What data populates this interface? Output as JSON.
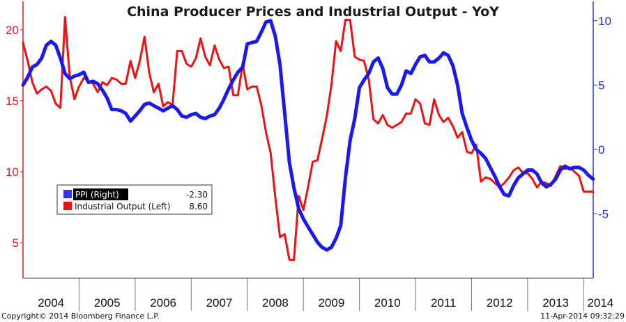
{
  "chart_data": {
    "type": "line",
    "title": "China Producer Prices and Industrial Output - YoY",
    "x": [
      2004.0,
      2004.083,
      2004.167,
      2004.25,
      2004.333,
      2004.417,
      2004.5,
      2004.583,
      2004.667,
      2004.75,
      2004.833,
      2004.917,
      2005.0,
      2005.083,
      2005.167,
      2005.25,
      2005.333,
      2005.417,
      2005.5,
      2005.583,
      2005.667,
      2005.75,
      2005.833,
      2005.917,
      2006.0,
      2006.083,
      2006.167,
      2006.25,
      2006.333,
      2006.417,
      2006.5,
      2006.583,
      2006.667,
      2006.75,
      2006.833,
      2006.917,
      2007.0,
      2007.083,
      2007.167,
      2007.25,
      2007.333,
      2007.417,
      2007.5,
      2007.583,
      2007.667,
      2007.75,
      2007.833,
      2007.917,
      2008.0,
      2008.083,
      2008.167,
      2008.25,
      2008.333,
      2008.417,
      2008.5,
      2008.583,
      2008.667,
      2008.75,
      2008.833,
      2008.917,
      2009.0,
      2009.083,
      2009.167,
      2009.25,
      2009.333,
      2009.417,
      2009.5,
      2009.583,
      2009.667,
      2009.75,
      2009.833,
      2009.917,
      2010.0,
      2010.083,
      2010.167,
      2010.25,
      2010.333,
      2010.417,
      2010.5,
      2010.583,
      2010.667,
      2010.75,
      2010.833,
      2010.917,
      2011.0,
      2011.083,
      2011.167,
      2011.25,
      2011.333,
      2011.417,
      2011.5,
      2011.583,
      2011.667,
      2011.75,
      2011.833,
      2011.917,
      2012.0,
      2012.083,
      2012.167,
      2012.25,
      2012.333,
      2012.417,
      2012.5,
      2012.583,
      2012.667,
      2012.75,
      2012.833,
      2012.917,
      2013.0,
      2013.083,
      2013.167,
      2013.25,
      2013.333,
      2013.417,
      2013.5,
      2013.583,
      2013.667,
      2013.75,
      2013.833,
      2013.917,
      2014.0,
      2014.083,
      2014.167
    ],
    "series": [
      {
        "name": "Industrial Output (Left)",
        "axis": "left",
        "color": "#ee1111",
        "last_value": "8.60",
        "values": [
          19.1,
          17.8,
          16.3,
          15.5,
          15.8,
          16.0,
          15.7,
          14.8,
          14.5,
          20.9,
          16.7,
          15.1,
          16.0,
          16.6,
          16.4,
          16.2,
          15.6,
          16.3,
          16.1,
          16.6,
          16.5,
          16.2,
          16.2,
          17.8,
          16.6,
          17.8,
          19.5,
          17.0,
          15.6,
          16.2,
          14.6,
          14.9,
          14.7,
          18.5,
          18.5,
          17.6,
          17.4,
          18.0,
          19.4,
          18.1,
          17.5,
          18.9,
          17.9,
          17.3,
          17.4,
          15.4,
          15.4,
          17.6,
          15.8,
          16.0,
          16.0,
          14.7,
          12.8,
          11.3,
          8.2,
          5.4,
          5.6,
          3.8,
          3.8,
          8.3,
          7.3,
          8.9,
          10.7,
          10.8,
          12.3,
          13.9,
          16.1,
          19.2,
          18.5,
          20.7,
          20.7,
          18.1,
          17.9,
          17.8,
          16.5,
          13.7,
          13.4,
          14.0,
          13.3,
          13.1,
          13.3,
          13.5,
          14.1,
          14.1,
          15.1,
          14.8,
          13.4,
          13.3,
          15.1,
          14.0,
          13.5,
          13.8,
          13.2,
          12.4,
          12.8,
          11.4,
          11.3,
          11.9,
          9.3,
          9.6,
          9.5,
          9.2,
          8.9,
          9.2,
          9.6,
          10.1,
          10.3,
          9.9,
          9.9,
          9.5,
          8.9,
          9.3,
          9.2,
          9.0,
          9.7,
          10.4,
          10.2,
          10.3,
          10.0,
          9.7,
          8.6,
          8.6,
          8.6
        ]
      },
      {
        "name": "PPI (Right)",
        "axis": "right",
        "color": "#1a1af0",
        "last_value": "-2.30",
        "values": [
          5.0,
          5.6,
          6.4,
          6.6,
          7.1,
          8.1,
          8.4,
          8.1,
          7.1,
          5.9,
          5.5,
          5.7,
          5.8,
          6.0,
          5.2,
          5.3,
          5.1,
          4.6,
          4.0,
          3.1,
          3.1,
          3.0,
          2.8,
          2.2,
          2.6,
          3.0,
          3.5,
          3.6,
          3.4,
          3.2,
          3.0,
          3.2,
          3.4,
          3.1,
          2.6,
          2.5,
          2.7,
          2.8,
          2.5,
          2.4,
          2.6,
          2.7,
          3.2,
          3.9,
          4.7,
          5.4,
          6.0,
          6.4,
          8.2,
          8.3,
          8.4,
          9.1,
          9.9,
          10.0,
          8.8,
          6.6,
          2.8,
          -1.0,
          -3.0,
          -4.6,
          -5.4,
          -6.0,
          -6.6,
          -7.2,
          -7.6,
          -7.8,
          -7.6,
          -6.9,
          -5.9,
          -2.2,
          0.7,
          2.4,
          4.8,
          5.4,
          5.9,
          6.8,
          7.1,
          6.3,
          4.8,
          4.3,
          4.3,
          5.0,
          6.1,
          5.9,
          6.6,
          7.2,
          7.3,
          6.8,
          6.8,
          7.1,
          7.5,
          7.3,
          6.5,
          5.0,
          2.8,
          1.7,
          0.7,
          0.0,
          -0.3,
          -0.7,
          -1.4,
          -2.1,
          -2.9,
          -3.5,
          -3.6,
          -2.8,
          -2.2,
          -1.9,
          -1.6,
          -1.6,
          -1.9,
          -2.6,
          -2.9,
          -2.7,
          -2.3,
          -1.6,
          -1.3,
          -1.5,
          -1.4,
          -1.4,
          -1.6,
          -2.0,
          -2.3
        ]
      }
    ],
    "left_axis": {
      "ylim": [
        2.5,
        22.0
      ],
      "ticks": [
        5,
        10,
        15,
        20
      ],
      "tick_labels": [
        "5",
        "10",
        "15",
        "20"
      ]
    },
    "right_axis": {
      "ylim": [
        -10.0,
        11.5
      ],
      "ticks": [
        -5,
        0,
        5,
        10
      ],
      "tick_labels": [
        "-5",
        "0",
        "5",
        "10"
      ]
    },
    "x_axis": {
      "xlim": [
        2004.0,
        2014.17
      ],
      "year_labels": [
        "2004",
        "2005",
        "2006",
        "2007",
        "2008",
        "2009",
        "2010",
        "2011",
        "2012",
        "2013",
        "2014"
      ]
    },
    "legend": {
      "placement": "left-middle",
      "entries": [
        {
          "label": "PPI (Right)",
          "value": "-2.30",
          "color": "#3333ff"
        },
        {
          "label": "Industrial Output (Left)",
          "value": "8.60",
          "color": "#ee1111"
        }
      ]
    }
  },
  "footer": {
    "copyright": "Copyright© 2014 Bloomberg Finance L.P.",
    "timestamp": "11-Apr-2014 09:32:29"
  }
}
